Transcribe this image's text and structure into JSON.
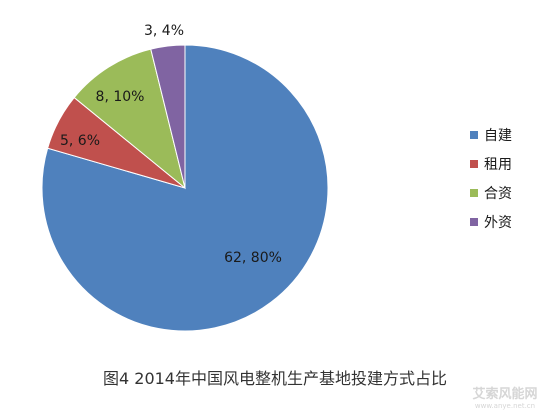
{
  "caption": "图4  2014年中国风电整机生产基地投建方式占比",
  "watermark": {
    "text": "艾索风能网",
    "url": "www.anye.net.cn"
  },
  "chart_data": {
    "type": "pie",
    "title": "",
    "start_angle_deg": 0,
    "direction": "clockwise",
    "legend_position": "right",
    "slices": [
      {
        "name": "自建",
        "value": 62,
        "percent": "80%",
        "label": "62, 80%",
        "color": "#4f81bd"
      },
      {
        "name": "租用",
        "value": 5,
        "percent": "6%",
        "label": "5, 6%",
        "color": "#c0504d"
      },
      {
        "name": "合资",
        "value": 8,
        "percent": "10%",
        "label": "8, 10%",
        "color": "#9bbb59"
      },
      {
        "name": "外资",
        "value": 3,
        "percent": "4%",
        "label": "3, 4%",
        "color": "#8064a2"
      }
    ]
  }
}
